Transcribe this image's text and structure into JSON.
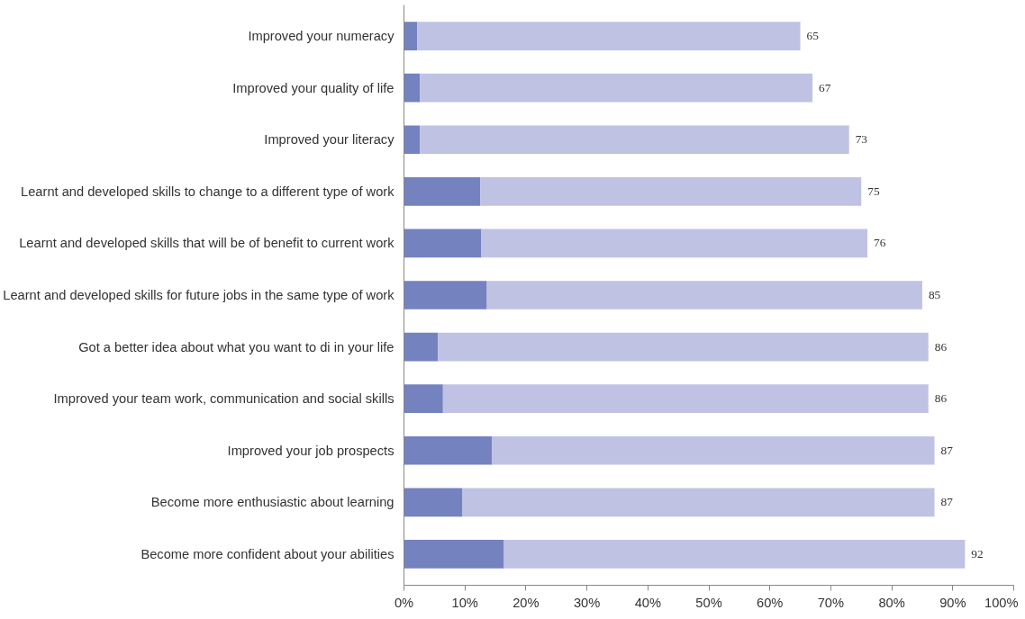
{
  "chart_data": {
    "type": "bar",
    "orientation": "horizontal",
    "stacked": true,
    "categories": [
      "Improved your numeracy",
      "Improved your quality of life",
      "Improved your literacy",
      "Learnt and developed skills to change to a different type of work",
      "Learnt and developed skills that will be of benefit to current work",
      "Learnt and developed skills for future jobs in the same type of work",
      "Got a better idea about what you want to di in your life",
      "Improved your team work, communication and social skills",
      "Improved your job prospects",
      "Become more enthusiastic about learning",
      "Become more confident about your abilities"
    ],
    "series": [
      {
        "color": "#7582c0",
        "values": [
          2.2,
          2.6,
          2.6,
          12.5,
          12.7,
          13.6,
          5.6,
          6.4,
          14.4,
          9.6,
          16.4
        ]
      },
      {
        "color": "#bfc2e3",
        "values": [
          62.8,
          64.4,
          70.4,
          62.5,
          63.3,
          71.4,
          80.4,
          79.6,
          72.6,
          77.4,
          75.6
        ]
      }
    ],
    "totals": [
      "65",
      "67",
      "73",
      "75",
      "76",
      "85",
      "86",
      "86",
      "87",
      "87",
      "92"
    ],
    "xlim": [
      0,
      100
    ],
    "xticks": [
      {
        "value": 0,
        "label": "0%"
      },
      {
        "value": 10,
        "label": "10%"
      },
      {
        "value": 20,
        "label": "20%"
      },
      {
        "value": 30,
        "label": "30%"
      },
      {
        "value": 40,
        "label": "40%"
      },
      {
        "value": 50,
        "label": "50%"
      },
      {
        "value": 60,
        "label": "60%"
      },
      {
        "value": 70,
        "label": "70%"
      },
      {
        "value": 80,
        "label": "80%"
      },
      {
        "value": 90,
        "label": "90%"
      },
      {
        "value": 100,
        "label": "100%"
      }
    ],
    "grid": false
  }
}
